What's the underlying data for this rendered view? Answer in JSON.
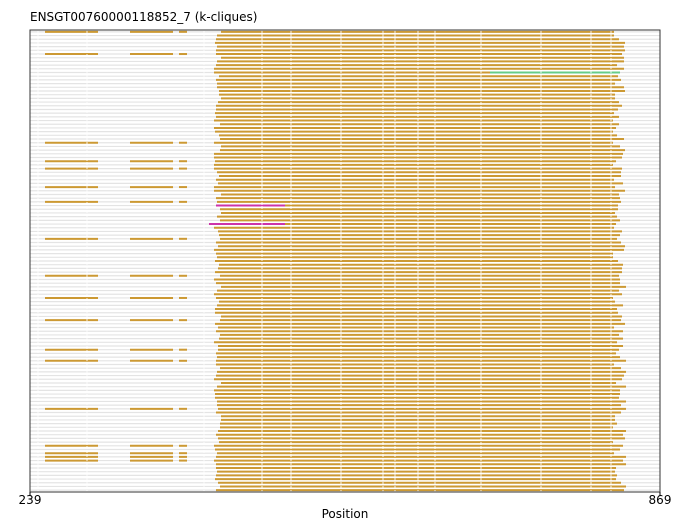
{
  "chart_data": {
    "type": "gantt",
    "title": "ENSGT00760000118852_7 (k-cliques)",
    "xlabel": "Position",
    "xlim": [
      239,
      869
    ],
    "x_ticks": [
      "239",
      "869"
    ],
    "grid": false,
    "legend": "none",
    "colors": {
      "background": "#e4e4e4",
      "primary": "#cc9933",
      "magenta": "#cc33aa",
      "green": "#66cc88",
      "frame": "#333333"
    },
    "row_count": 125,
    "core_segment": {
      "start": 427,
      "end": 598
    },
    "extended_segment": {
      "start": 598,
      "end": 835
    },
    "leading_exons": [
      {
        "start": 254,
        "end": 307
      },
      {
        "start": 339,
        "end": 382
      },
      {
        "start": 388,
        "end": 396
      }
    ],
    "highlighted_rows": [
      {
        "row": 47,
        "start": 425,
        "end": 494,
        "color": "magenta"
      },
      {
        "row": 52,
        "start": 418,
        "end": 494,
        "color": "magenta"
      },
      {
        "row": 11,
        "start": 699,
        "end": 829,
        "color": "green"
      }
    ]
  }
}
